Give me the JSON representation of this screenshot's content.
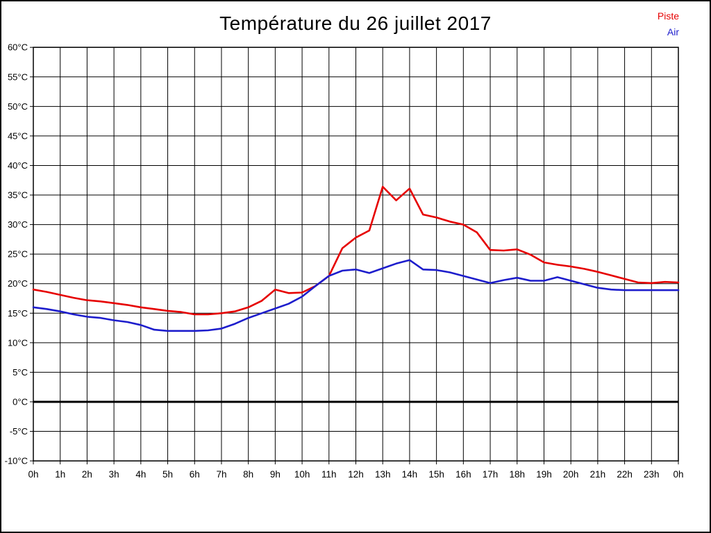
{
  "title": "Température du 26 juillet 2017",
  "legend": {
    "items": [
      {
        "label": "Piste",
        "color": "#e60000"
      },
      {
        "label": "Air",
        "color": "#1d1dcc"
      }
    ]
  },
  "chart_data": {
    "type": "line",
    "title": "Température du 26 juillet 2017",
    "xlabel": "",
    "ylabel": "",
    "xlim": [
      0,
      24
    ],
    "ylim": [
      -10,
      60
    ],
    "grid": true,
    "legend_position": "top-right",
    "x_step_hours": 0.5,
    "x_tick_labels": [
      "0h",
      "1h",
      "2h",
      "3h",
      "4h",
      "5h",
      "6h",
      "7h",
      "8h",
      "9h",
      "10h",
      "11h",
      "12h",
      "13h",
      "14h",
      "15h",
      "16h",
      "17h",
      "18h",
      "19h",
      "20h",
      "21h",
      "22h",
      "23h",
      "0h"
    ],
    "y_tick_labels": [
      "60°C",
      "55°C",
      "50°C",
      "45°C",
      "40°C",
      "35°C",
      "30°C",
      "25°C",
      "20°C",
      "15°C",
      "10°C",
      "5°C",
      "0°C",
      "-5°C",
      "-10°C"
    ],
    "y_tick_values": [
      60,
      55,
      50,
      45,
      40,
      35,
      30,
      25,
      20,
      15,
      10,
      5,
      0,
      -5,
      -10
    ],
    "zero_line_emphasized": true,
    "series": [
      {
        "name": "Piste",
        "color": "#e60000",
        "values": [
          19.0,
          18.6,
          18.1,
          17.6,
          17.2,
          17.0,
          16.7,
          16.4,
          16.0,
          15.7,
          15.4,
          15.2,
          14.8,
          14.8,
          15.0,
          15.3,
          16.0,
          17.1,
          19.0,
          18.4,
          18.5,
          19.6,
          21.3,
          26.0,
          27.8,
          29.0,
          36.4,
          34.1,
          36.1,
          31.7,
          31.2,
          30.5,
          30.0,
          28.7,
          25.7,
          25.6,
          25.8,
          24.9,
          23.6,
          23.2,
          22.9,
          22.5,
          22.0,
          21.4,
          20.8,
          20.2,
          20.1,
          20.3,
          20.2
        ]
      },
      {
        "name": "Air",
        "color": "#1d1dcc",
        "values": [
          16.0,
          15.7,
          15.3,
          14.8,
          14.4,
          14.2,
          13.8,
          13.5,
          13.0,
          12.2,
          12.0,
          12.0,
          12.0,
          12.1,
          12.4,
          13.2,
          14.2,
          15.0,
          15.8,
          16.6,
          17.8,
          19.6,
          21.3,
          22.2,
          22.4,
          21.8,
          22.6,
          23.4,
          24.0,
          22.4,
          22.3,
          21.9,
          21.3,
          20.7,
          20.1,
          20.6,
          21.0,
          20.5,
          20.5,
          21.1,
          20.5,
          19.9,
          19.3,
          19.0,
          18.9,
          18.9,
          18.9,
          18.9,
          18.9
        ]
      }
    ]
  }
}
